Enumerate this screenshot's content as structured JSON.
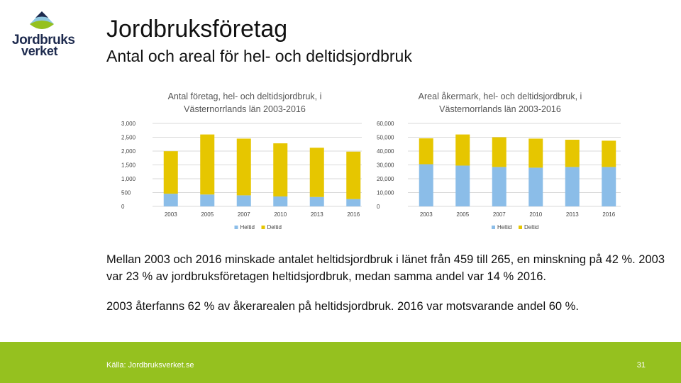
{
  "header": {
    "logo_line1": "Jordbruks",
    "logo_line2": "verket",
    "title": "Jordbruksföretag",
    "subtitle": "Antal och areal för hel- och deltidsjordbruk"
  },
  "colors": {
    "heltid": "#8bbde8",
    "deltid": "#e6c600",
    "grid": "#d9d9d9",
    "footer": "#95c11f"
  },
  "chart_data": [
    {
      "type": "bar",
      "stacked": true,
      "title": "Antal företag, hel- och deltidsjordbruk, i Västernorrlands län 2003-2016",
      "categories": [
        "2003",
        "2005",
        "2007",
        "2010",
        "2013",
        "2016"
      ],
      "series": [
        {
          "name": "Heltid",
          "values": [
            459,
            430,
            400,
            360,
            340,
            265
          ]
        },
        {
          "name": "Deltid",
          "values": [
            1536,
            2170,
            2050,
            1920,
            1780,
            1715
          ]
        }
      ],
      "yticks": [
        "0",
        "500",
        "1,000",
        "1,500",
        "2,000",
        "2,500",
        "3,000"
      ],
      "ylim": [
        0,
        3000
      ],
      "grid": true,
      "legend": "bottom"
    },
    {
      "type": "bar",
      "stacked": true,
      "title": "Areal åkermark, hel- och deltidsjordbruk, i Västernorrlands län 2003-2016",
      "categories": [
        "2003",
        "2005",
        "2007",
        "2010",
        "2013",
        "2016"
      ],
      "series": [
        {
          "name": "Heltid",
          "values": [
            30500,
            29500,
            28500,
            28000,
            28500,
            28500
          ]
        },
        {
          "name": "Deltid",
          "values": [
            18700,
            22500,
            21500,
            21000,
            19700,
            19000
          ]
        }
      ],
      "yticks": [
        "0",
        "10,000",
        "20,000",
        "30,000",
        "40,000",
        "50,000",
        "60,000"
      ],
      "ylim": [
        0,
        60000
      ],
      "grid": true,
      "legend": "bottom"
    }
  ],
  "text": {
    "p1": "Mellan 2003 och 2016 minskade antalet heltidsjordbruk i länet från 459 till 265, en minskning på 42 %. 2003 var 23 % av jordbruksföretagen heltidsjordbruk, medan samma andel var 14 % 2016.",
    "p2": "2003 återfanns 62 % av åkerarealen på heltidsjordbruk. 2016 var motsvarande andel 60 %."
  },
  "footer": {
    "source": "Källa: Jordbruksverket.se",
    "page": "31"
  }
}
